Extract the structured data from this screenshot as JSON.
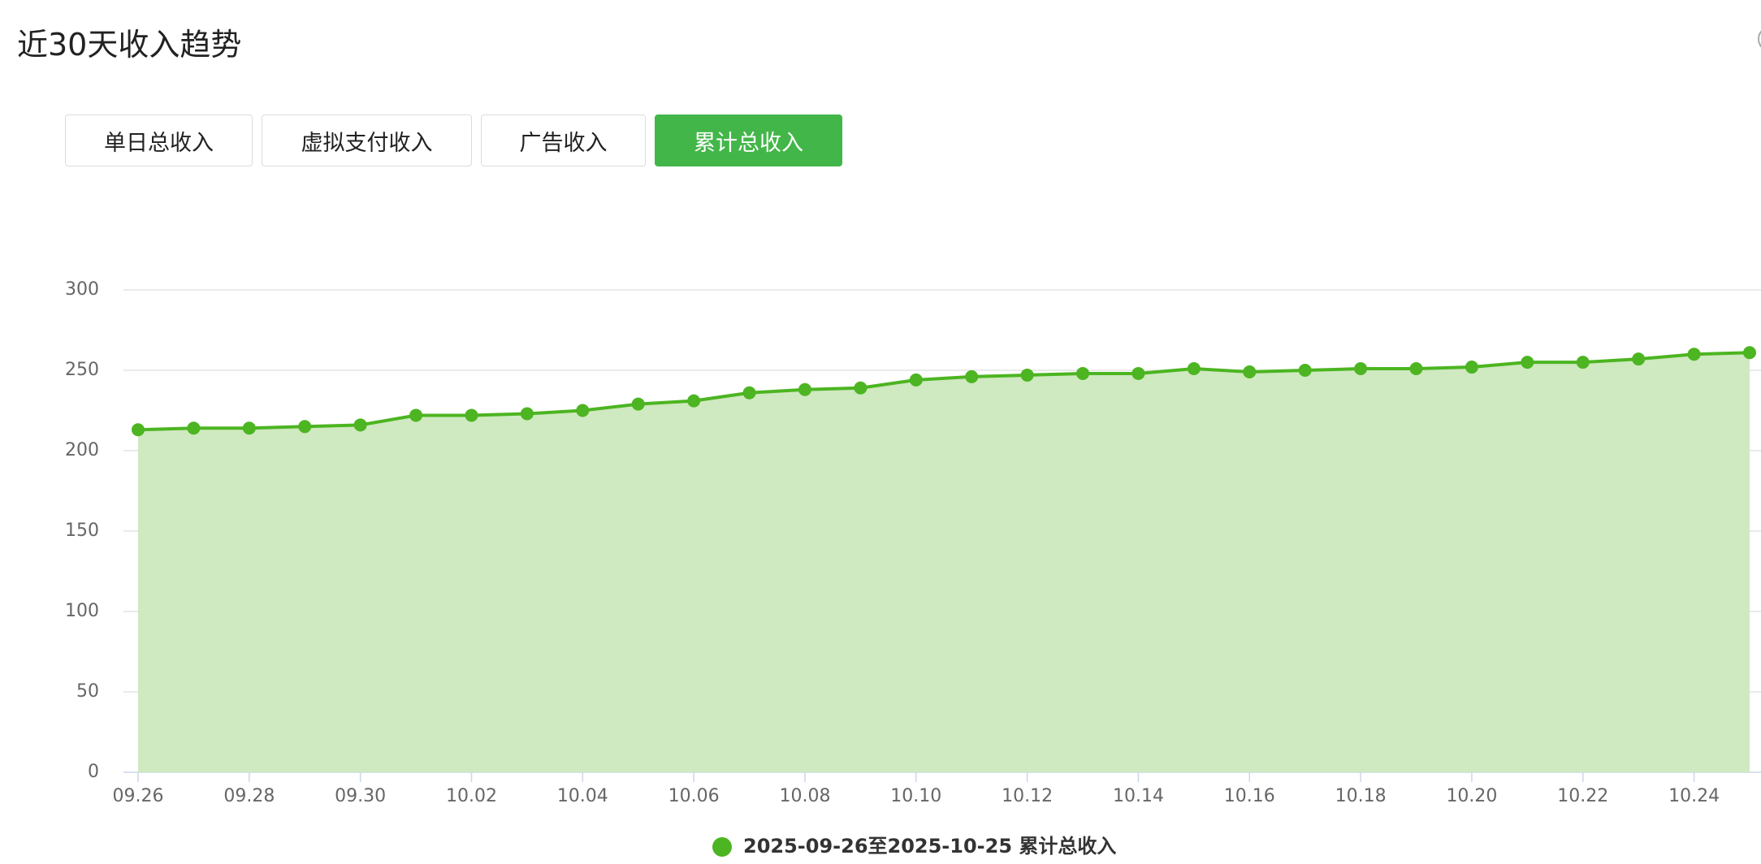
{
  "header": {
    "title": "近30天收入趋势"
  },
  "tabs": [
    "单日总收入",
    "虚拟支付收入",
    "广告收入",
    "累计总收入"
  ],
  "chart_data": {
    "type": "area",
    "categories": [
      "09.26",
      null,
      "09.28",
      null,
      "09.30",
      null,
      "10.02",
      null,
      "10.04",
      null,
      "10.06",
      null,
      "10.08",
      null,
      "10.10",
      null,
      "10.12",
      null,
      "10.14",
      null,
      "10.16",
      null,
      "10.18",
      null,
      "10.20",
      null,
      "10.22",
      null,
      "10.24",
      null
    ],
    "series": [
      {
        "name": "2025-09-26至2025-10-25 累计总收入",
        "color": "#4cb521",
        "values": [
          213,
          214,
          214,
          215,
          216,
          222,
          222,
          223,
          225,
          229,
          231,
          236,
          238,
          239,
          244,
          246,
          247,
          248,
          248,
          251,
          249,
          250,
          251,
          251,
          252,
          255,
          255,
          257,
          260,
          261
        ]
      }
    ],
    "ylim": [
      0,
      300
    ],
    "yticks": [
      0,
      50,
      100,
      150,
      200,
      250,
      300
    ],
    "grid": true,
    "fill_color": "#cfe9c0"
  }
}
